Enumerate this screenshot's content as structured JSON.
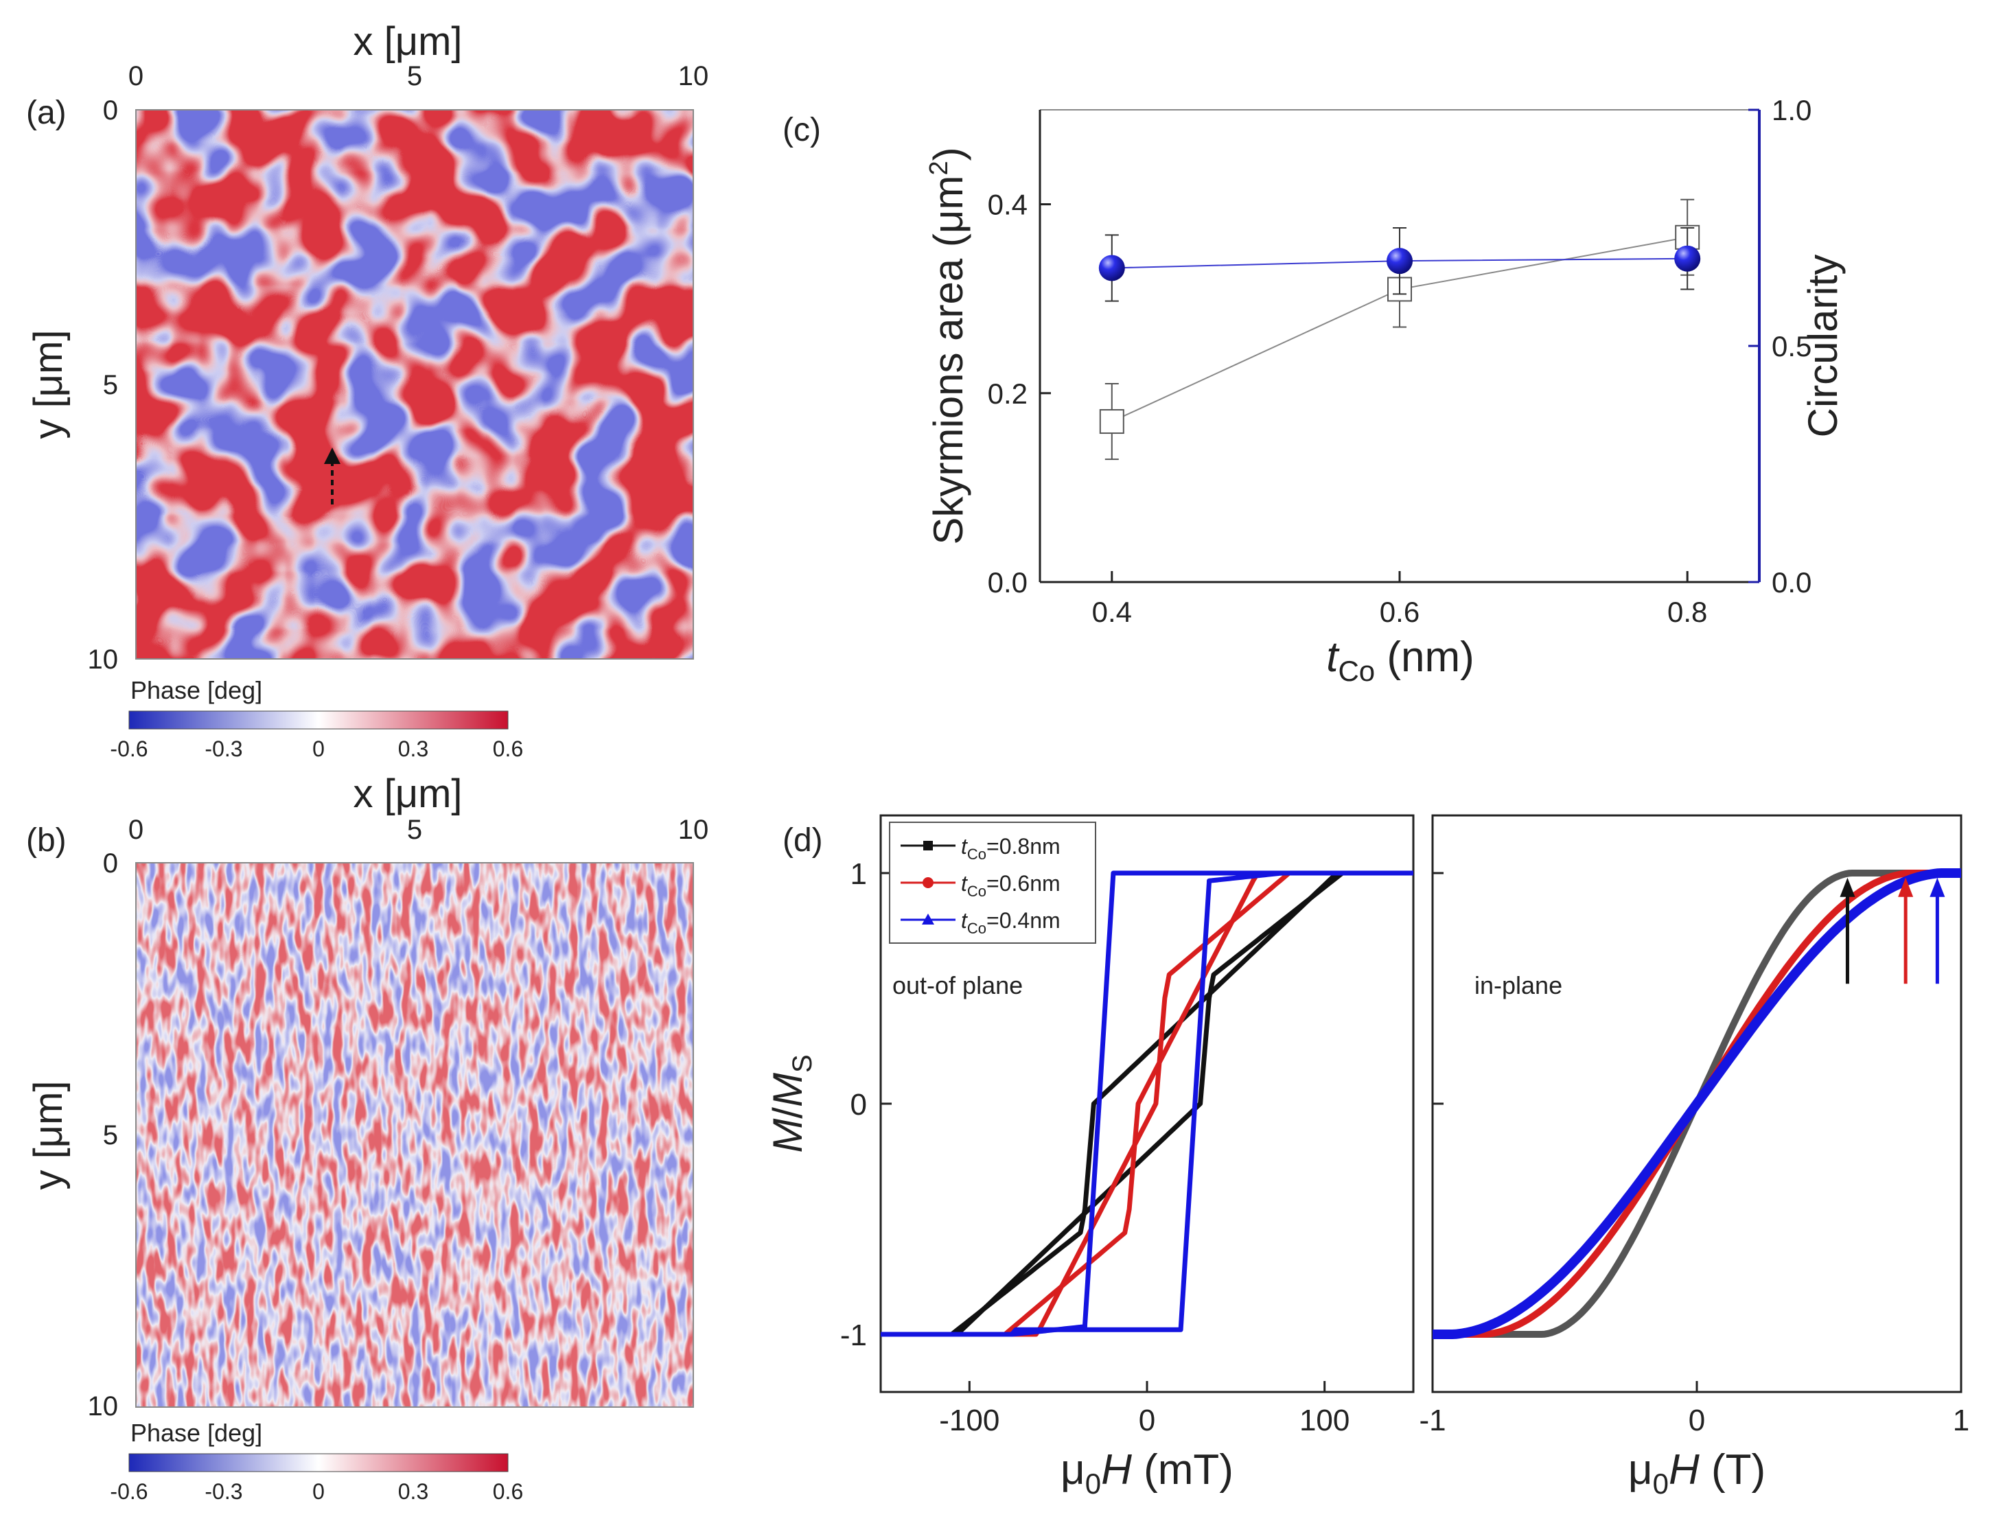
{
  "colors": {
    "neg": "#2b35c8",
    "pos": "#c8102e",
    "black_series": "#111111",
    "red_series": "#d81e1e",
    "blue_series": "#1414e0",
    "gray_series": "#555555",
    "right_axis": "#1c1ca8"
  },
  "chart_data": [
    {
      "panel": "(a)",
      "type": "heatmap",
      "xlabel_prefix": "x [",
      "xlabel_unit": "μm",
      "xlabel_suffix": "]",
      "ylabel_prefix": "y [",
      "ylabel_unit": "μm",
      "ylabel_suffix": "]",
      "xlim": [
        0,
        10
      ],
      "ylim": [
        0,
        10
      ],
      "xticks": [
        "0",
        "5",
        "10"
      ],
      "yticks": [
        "0",
        "5",
        "10"
      ],
      "pattern": "labyrinth",
      "arrow_at": [
        3.5,
        6.3
      ],
      "colorbar": {
        "label": "Phase [deg]",
        "ticks": [
          "-0.6",
          "-0.3",
          "0",
          "0.3",
          "0.6"
        ],
        "range": [
          -0.6,
          0.6
        ]
      }
    },
    {
      "panel": "(b)",
      "type": "heatmap",
      "xlabel_prefix": "x [",
      "xlabel_unit": "μm",
      "xlabel_suffix": "]",
      "ylabel_prefix": "y [",
      "ylabel_unit": "μm",
      "ylabel_suffix": "]",
      "xlim": [
        0,
        10
      ],
      "ylim": [
        0,
        10
      ],
      "xticks": [
        "0",
        "5",
        "10"
      ],
      "yticks": [
        "0",
        "5",
        "10"
      ],
      "pattern": "fine stripes",
      "colorbar": {
        "label": "Phase [deg]",
        "ticks": [
          "-0.6",
          "-0.3",
          "0",
          "0.3",
          "0.6"
        ],
        "range": [
          -0.6,
          0.6
        ]
      }
    },
    {
      "panel": "(c)",
      "type": "scatter",
      "x": [
        0.4,
        0.6,
        0.8
      ],
      "xlim": [
        0.35,
        0.85
      ],
      "xticks": [
        "0.4",
        "0.6",
        "0.8"
      ],
      "xlabel_main": "t",
      "xlabel_sub": "Co",
      "xlabel_rest": " (nm)",
      "ylabel_left_main": "Skyrmions area (",
      "ylabel_left_unit": "μm",
      "ylabel_left_sup": "2",
      "ylabel_left_close": ")",
      "ylim_left": [
        0,
        0.5
      ],
      "yticks_left": [
        "0.0",
        "0.2",
        "0.4"
      ],
      "ylabel_right": "Circularity",
      "ylim_right": [
        0,
        1.0
      ],
      "yticks_right": [
        "0.0",
        "0.5",
        "1.0"
      ],
      "series": [
        {
          "axis": "left",
          "marker": "open-square",
          "values": [
            0.17,
            0.31,
            0.365
          ],
          "errors": [
            0.04,
            0.04,
            0.04
          ]
        },
        {
          "axis": "right",
          "marker": "filled-circle",
          "values": [
            0.665,
            0.68,
            0.685
          ],
          "errors": [
            0.07,
            0.07,
            0.065
          ]
        }
      ]
    },
    {
      "panel": "(d)",
      "type": "line",
      "subplot": "out-of-plane",
      "annotation": "out-of plane",
      "xlabel_main": "μ",
      "xlabel_sub": "0",
      "xlabel_var": "H",
      "xlabel_unit": " (mT)",
      "ylabel_num": "M",
      "ylabel_den": "M",
      "ylabel_den_sub": "S",
      "xlim": [
        -150,
        150
      ],
      "ylim": [
        -1.25,
        1.25
      ],
      "xticks": [
        "-100",
        "0",
        "100"
      ],
      "yticks": [
        "-1",
        "0",
        "1"
      ],
      "legend": {
        "position": "top-left",
        "entries": [
          {
            "main": "t",
            "sub": "Co",
            "rest": "=0.8nm"
          },
          {
            "main": "t",
            "sub": "Co",
            "rest": "=0.6nm"
          },
          {
            "main": "t",
            "sub": "Co",
            "rest": "=0.4nm"
          }
        ]
      },
      "series": [
        {
          "t_Co_nm": 0.8,
          "marker": "square",
          "loop": "slanted",
          "Hs": 110,
          "Hn": 30,
          "Hc": 3
        },
        {
          "t_Co_nm": 0.6,
          "marker": "circle",
          "loop": "slanted",
          "Hs": 80,
          "Hn": 5,
          "Hc": 18
        },
        {
          "t_Co_nm": 0.4,
          "marker": "triangle",
          "loop": "square",
          "Hs": 75,
          "Hn": 25,
          "Hc": 27
        }
      ]
    },
    {
      "panel": "(d)",
      "type": "line",
      "subplot": "in-plane",
      "annotation": "in-plane",
      "xlabel_main": "μ",
      "xlabel_sub": "0",
      "xlabel_var": "H",
      "xlabel_unit": " (T)",
      "xlim": [
        -1,
        1
      ],
      "ylim": [
        -1.25,
        1.25
      ],
      "xticks": [
        "-1",
        "0",
        "1"
      ],
      "series": [
        {
          "t_Co_nm": 0.8,
          "saturation_T": 0.58
        },
        {
          "t_Co_nm": 0.6,
          "saturation_T": 0.8
        },
        {
          "t_Co_nm": 0.4,
          "saturation_T": 0.92
        }
      ],
      "arrows_at_T": [
        0.57,
        0.79,
        0.91
      ]
    }
  ]
}
